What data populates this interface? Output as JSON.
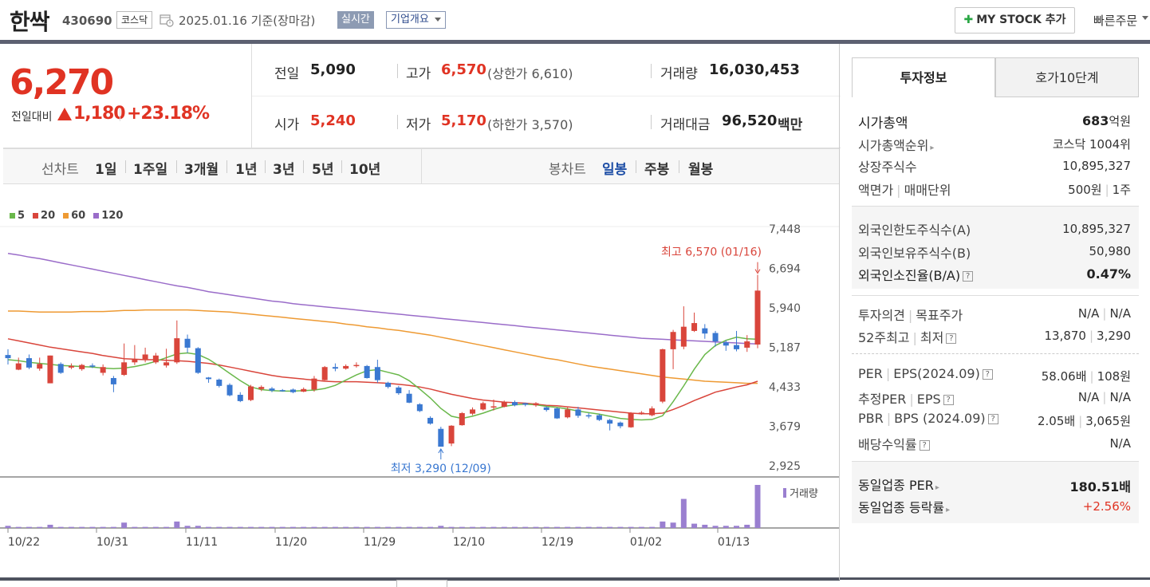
{
  "header": {
    "name": "한싹",
    "code": "430690",
    "market": "코스닥",
    "date": "2025.01.16 기준(장마감)",
    "realtime": "실시간",
    "company_info": "기업개요",
    "mystock_label": "MY STOCK 추가",
    "quick_order": "빠른주문"
  },
  "price": {
    "current": "6,270",
    "change_label": "전일대비",
    "change": "1,180",
    "change_rate": "+23.18%"
  },
  "stats": {
    "prev_label": "전일",
    "prev": "5,090",
    "high_label": "고가",
    "high": "6,570",
    "upper_limit": "(상한가 6,610)",
    "volume_label": "거래량",
    "volume": "16,030,453",
    "open_label": "시가",
    "open": "5,240",
    "low_label": "저가",
    "low": "5,170",
    "lower_limit": "(하한가 3,570)",
    "amount_label": "거래대금",
    "amount": "96,520",
    "amount_unit": "백만"
  },
  "chart_tabs": {
    "line_label": "선차트",
    "line_periods": [
      "1일",
      "1주일",
      "3개월",
      "1년",
      "3년",
      "5년",
      "10년"
    ],
    "candle_label": "봉차트",
    "candle_periods": [
      "일봉",
      "주봉",
      "월봉"
    ],
    "active_candle": "일봉"
  },
  "chart_data": {
    "type": "candlestick",
    "legend": [
      {
        "name": "5",
        "color": "#6ab84b"
      },
      {
        "name": "20",
        "color": "#d9453b"
      },
      {
        "name": "60",
        "color": "#ee9a33"
      },
      {
        "name": "120",
        "color": "#9a6cc9"
      }
    ],
    "y_ticks": [
      7448,
      6694,
      5940,
      5187,
      4433,
      3679,
      2925
    ],
    "y_tick_labels": [
      "7,448",
      "6,694",
      "5,940",
      "5,187",
      "4,433",
      "3,679",
      "2,925"
    ],
    "ylim": [
      2925,
      7448
    ],
    "x_tick_labels": [
      "10/22",
      "10/31",
      "11/11",
      "11/20",
      "11/29",
      "12/10",
      "12/19",
      "01/02",
      "01/13"
    ],
    "high_annotation": "최고 6,570 (01/16)",
    "low_annotation": "최저 3,290 (12/09)",
    "volume_label": "거래량",
    "up_color": "#d9453b",
    "down_color": "#3a78d1",
    "candles": [
      [
        5040,
        4980,
        5150,
        4860
      ],
      [
        4760,
        4880,
        4990,
        4750
      ],
      [
        4980,
        4800,
        5050,
        4770
      ],
      [
        4780,
        4870,
        4990,
        4740
      ],
      [
        4500,
        5030,
        5030,
        4500
      ],
      [
        4870,
        4700,
        4900,
        4680
      ],
      [
        4800,
        4830,
        4880,
        4770
      ],
      [
        4770,
        4850,
        4870,
        4740
      ],
      [
        4840,
        4820,
        4880,
        4790
      ],
      [
        4700,
        4810,
        4860,
        4650
      ],
      [
        4600,
        4480,
        4640,
        4330
      ],
      [
        4660,
        4900,
        5260,
        4640
      ],
      [
        4900,
        4950,
        5230,
        4850
      ],
      [
        4960,
        5050,
        5180,
        4900
      ],
      [
        4900,
        5030,
        5080,
        4870
      ],
      [
        4840,
        4900,
        5160,
        4800
      ],
      [
        4900,
        5360,
        5700,
        4870
      ],
      [
        5350,
        5180,
        5430,
        5080
      ],
      [
        5170,
        4700,
        5190,
        4680
      ],
      [
        4610,
        4580,
        4620,
        4510
      ],
      [
        4570,
        4450,
        4590,
        4420
      ],
      [
        4470,
        4270,
        4500,
        4250
      ],
      [
        4280,
        4160,
        4330,
        4140
      ],
      [
        4180,
        4440,
        4470,
        4160
      ],
      [
        4390,
        4430,
        4460,
        4350
      ],
      [
        4400,
        4360,
        4430,
        4330
      ],
      [
        4370,
        4360,
        4390,
        4340
      ],
      [
        4380,
        4330,
        4400,
        4310
      ],
      [
        4340,
        4390,
        4420,
        4330
      ],
      [
        4380,
        4590,
        4640,
        4340
      ],
      [
        4560,
        4810,
        4830,
        4550
      ],
      [
        4810,
        4780,
        4880,
        4730
      ],
      [
        4780,
        4830,
        4860,
        4760
      ],
      [
        4830,
        4850,
        4900,
        4800
      ],
      [
        4830,
        4600,
        4850,
        4590
      ],
      [
        4810,
        4560,
        4950,
        4510
      ],
      [
        4510,
        4430,
        4530,
        4400
      ],
      [
        4420,
        4310,
        4450,
        4280
      ],
      [
        4300,
        4130,
        4370,
        4120
      ],
      [
        4100,
        3970,
        4120,
        3950
      ],
      [
        3840,
        3730,
        3870,
        3710
      ],
      [
        3630,
        3290,
        3670,
        3290
      ],
      [
        3350,
        3690,
        3700,
        3300
      ],
      [
        3700,
        3930,
        3950,
        3690
      ],
      [
        3920,
        4000,
        4040,
        3890
      ],
      [
        4000,
        4120,
        4150,
        3980
      ],
      [
        4050,
        4060,
        4190,
        3980
      ],
      [
        4050,
        4140,
        4170,
        4040
      ],
      [
        4140,
        4080,
        4170,
        4060
      ],
      [
        4120,
        4090,
        4130,
        4060
      ],
      [
        4080,
        4120,
        4140,
        4050
      ],
      [
        4040,
        3990,
        4060,
        3960
      ],
      [
        4020,
        3830,
        4040,
        3820
      ],
      [
        3850,
        4000,
        4040,
        3830
      ],
      [
        4000,
        3880,
        4050,
        3840
      ],
      [
        3890,
        3870,
        3930,
        3830
      ],
      [
        3890,
        3800,
        3920,
        3780
      ],
      [
        3800,
        3730,
        3820,
        3600
      ],
      [
        3750,
        3680,
        3770,
        3640
      ],
      [
        3660,
        3930,
        3950,
        3650
      ],
      [
        3910,
        3940,
        3970,
        3900
      ],
      [
        3890,
        4020,
        4060,
        3870
      ],
      [
        4150,
        5150,
        5160,
        4120
      ],
      [
        5150,
        5480,
        5520,
        4770
      ],
      [
        5200,
        5580,
        5970,
        5150
      ],
      [
        5500,
        5650,
        5850,
        5480
      ],
      [
        5550,
        5450,
        5630,
        5350
      ],
      [
        5460,
        5300,
        5500,
        5200
      ],
      [
        5280,
        5220,
        5320,
        5120
      ],
      [
        5230,
        5150,
        5500,
        5110
      ],
      [
        5180,
        5300,
        5420,
        5100
      ],
      [
        5240,
        6270,
        6570,
        5170
      ]
    ],
    "ma5": [
      4950,
      4930,
      4900,
      4880,
      4860,
      4840,
      4830,
      4820,
      4810,
      4790,
      4780,
      4790,
      4820,
      4860,
      4920,
      4990,
      5060,
      5080,
      5050,
      4960,
      4830,
      4690,
      4550,
      4430,
      4380,
      4360,
      4350,
      4350,
      4360,
      4370,
      4400,
      4460,
      4560,
      4660,
      4740,
      4760,
      4710,
      4660,
      4550,
      4390,
      4220,
      4020,
      3870,
      3830,
      3870,
      3930,
      4000,
      4060,
      4090,
      4100,
      4090,
      4060,
      4040,
      4010,
      3970,
      3940,
      3910,
      3870,
      3830,
      3810,
      3800,
      3810,
      3880,
      4150,
      4450,
      4770,
      5050,
      5220,
      5320,
      5380,
      5350,
      5340
    ],
    "ma20": [
      5350,
      5310,
      5270,
      5230,
      5190,
      5160,
      5130,
      5100,
      5070,
      5030,
      5000,
      4970,
      4960,
      4950,
      4950,
      4940,
      4930,
      4920,
      4900,
      4880,
      4850,
      4810,
      4770,
      4730,
      4690,
      4650,
      4620,
      4600,
      4580,
      4560,
      4540,
      4530,
      4530,
      4530,
      4520,
      4510,
      4500,
      4480,
      4460,
      4430,
      4390,
      4340,
      4290,
      4250,
      4210,
      4180,
      4160,
      4140,
      4130,
      4120,
      4100,
      4080,
      4070,
      4050,
      4030,
      4010,
      3990,
      3970,
      3950,
      3930,
      3920,
      3920,
      3930,
      4000,
      4080,
      4170,
      4250,
      4330,
      4380,
      4430,
      4470,
      4540
    ],
    "ma60": [
      5880,
      5880,
      5870,
      5860,
      5860,
      5860,
      5860,
      5870,
      5870,
      5870,
      5880,
      5890,
      5890,
      5900,
      5900,
      5900,
      5900,
      5900,
      5890,
      5880,
      5870,
      5860,
      5840,
      5820,
      5800,
      5780,
      5760,
      5740,
      5720,
      5700,
      5680,
      5660,
      5630,
      5610,
      5580,
      5560,
      5530,
      5510,
      5480,
      5450,
      5420,
      5380,
      5340,
      5300,
      5260,
      5220,
      5180,
      5140,
      5100,
      5060,
      5020,
      4980,
      4950,
      4910,
      4870,
      4830,
      4800,
      4770,
      4740,
      4710,
      4680,
      4650,
      4620,
      4600,
      4580,
      4560,
      4540,
      4530,
      4520,
      4510,
      4500,
      4500
    ],
    "ma120": [
      6980,
      6950,
      6910,
      6880,
      6840,
      6800,
      6760,
      6720,
      6680,
      6640,
      6600,
      6560,
      6520,
      6480,
      6440,
      6400,
      6360,
      6330,
      6290,
      6250,
      6220,
      6190,
      6160,
      6130,
      6100,
      6070,
      6050,
      6020,
      6000,
      5980,
      5960,
      5940,
      5920,
      5900,
      5880,
      5860,
      5840,
      5820,
      5800,
      5780,
      5760,
      5740,
      5720,
      5700,
      5680,
      5660,
      5640,
      5620,
      5600,
      5580,
      5560,
      5540,
      5520,
      5500,
      5480,
      5460,
      5440,
      5420,
      5400,
      5380,
      5360,
      5350,
      5340,
      5330,
      5320,
      5310,
      5300,
      5290,
      5280,
      5270,
      5260,
      5250
    ],
    "volumes": [
      2,
      1,
      1,
      1,
      3,
      1,
      1,
      1,
      1,
      1,
      1,
      5,
      1,
      1,
      1,
      1,
      6,
      2,
      2,
      1,
      1,
      1,
      1,
      1,
      1,
      1,
      1,
      1,
      1,
      1,
      1,
      1,
      1,
      1,
      1,
      1,
      1,
      1,
      1,
      1,
      1,
      2,
      1,
      1,
      1,
      1,
      1,
      1,
      1,
      1,
      1,
      1,
      1,
      1,
      1,
      1,
      1,
      1,
      1,
      1,
      1,
      1,
      6,
      5,
      27,
      4,
      3,
      2,
      2,
      2,
      3,
      40
    ]
  },
  "right_panel": {
    "tab_invest": "투자정보",
    "tab_hoga": "호가10단계",
    "market_cap_label": "시가총액",
    "market_cap_num": "683",
    "market_cap_unit": "억원",
    "market_cap_rank_label": "시가총액순위",
    "market_cap_rank": "코스닥 1004위",
    "listed_shares_label": "상장주식수",
    "listed_shares": "10,895,327",
    "face_value_label": "액면가",
    "trade_unit_label": "매매단위",
    "face_value": "500원",
    "trade_unit": "1주",
    "foreign_limit_label": "외국인한도주식수(A)",
    "foreign_limit": "10,895,327",
    "foreign_hold_label": "외국인보유주식수(B)",
    "foreign_hold": "50,980",
    "foreign_rate_label": "외국인소진율(B/A)",
    "foreign_rate": "0.47%",
    "opinion_label": "투자의견",
    "target_label": "목표주가",
    "opinion": "N/A",
    "target": "N/A",
    "w52_high_label": "52주최고",
    "w52_low_label": "최저",
    "w52_high": "13,870",
    "w52_low": "3,290",
    "per_label": "PER",
    "eps_label": "EPS(2024.09)",
    "per": "58.06배",
    "eps": "108원",
    "est_per_label": "추정PER",
    "est_eps_label": "EPS",
    "est_per": "N/A",
    "est_eps": "N/A",
    "pbr_label": "PBR",
    "bps_label": "BPS (2024.09)",
    "pbr": "2.05배",
    "bps": "3,065원",
    "dividend_label": "배당수익률",
    "dividend": "N/A",
    "sector_per_label": "동일업종 PER",
    "sector_per": "180.51배",
    "sector_rate_label": "동일업종 등락률",
    "sector_rate": "+2.56%"
  }
}
